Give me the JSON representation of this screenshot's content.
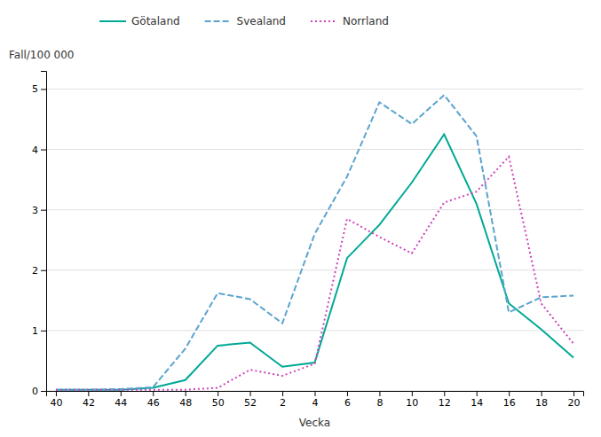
{
  "chart_data": {
    "type": "line",
    "xlabel": "Vecka",
    "ylabel": "Fall/100 000",
    "categories": [
      "40",
      "42",
      "44",
      "46",
      "48",
      "50",
      "52",
      "2",
      "4",
      "6",
      "8",
      "10",
      "12",
      "14",
      "16",
      "18",
      "20"
    ],
    "series": [
      {
        "name": "Götaland",
        "color": "#00A896",
        "line_style": "solid",
        "values": [
          0.02,
          0.02,
          0.02,
          0.05,
          0.18,
          0.75,
          0.8,
          0.4,
          0.47,
          2.2,
          2.75,
          3.45,
          4.25,
          3.1,
          1.45,
          1.02,
          0.55
        ]
      },
      {
        "name": "Svealand",
        "color": "#5BA4CF",
        "line_style": "dashed",
        "values": [
          0.02,
          0.02,
          0.03,
          0.06,
          0.7,
          1.62,
          1.52,
          1.12,
          2.6,
          3.55,
          4.78,
          4.42,
          4.9,
          4.22,
          1.3,
          1.55,
          1.58
        ]
      },
      {
        "name": "Norrland",
        "color": "#CC44BB",
        "line_style": "dotted",
        "values": [
          0.02,
          0.02,
          0.02,
          0.02,
          0.02,
          0.05,
          0.35,
          0.25,
          0.45,
          2.85,
          2.55,
          2.28,
          3.12,
          3.3,
          3.88,
          1.45,
          0.78
        ]
      }
    ],
    "ylim": [
      0,
      5.3
    ],
    "yticks": [
      0,
      1,
      2,
      3,
      4,
      5
    ],
    "grid": true,
    "legend": "top"
  }
}
